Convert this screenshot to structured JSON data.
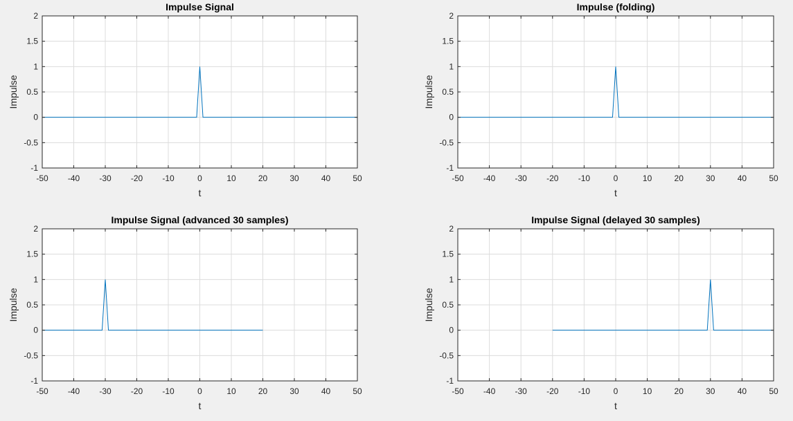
{
  "window": {
    "background": "#f0f0f0"
  },
  "colors": {
    "line": "#0072bd",
    "grid": "#dcdcdc",
    "axis": "#262626",
    "plot_bg": "#ffffff"
  },
  "chart_data": [
    {
      "type": "line",
      "title": "Impulse Signal",
      "xlabel": "t",
      "ylabel": "Impulse",
      "xlim": [
        -50,
        50
      ],
      "ylim": [
        -1,
        2
      ],
      "xticks": [
        -50,
        -40,
        -30,
        -20,
        -10,
        0,
        10,
        20,
        30,
        40,
        50
      ],
      "yticks": [
        -1,
        -0.5,
        0,
        0.5,
        1,
        1.5,
        2
      ],
      "grid": true,
      "series": [
        {
          "x": [
            -50,
            -1,
            0,
            1,
            50
          ],
          "y": [
            0,
            0,
            1,
            0,
            0
          ]
        }
      ]
    },
    {
      "type": "line",
      "title": "Impulse (folding)",
      "xlabel": "t",
      "ylabel": "Impulse",
      "xlim": [
        -50,
        50
      ],
      "ylim": [
        -1,
        2
      ],
      "xticks": [
        -50,
        -40,
        -30,
        -20,
        -10,
        0,
        10,
        20,
        30,
        40,
        50
      ],
      "yticks": [
        -1,
        -0.5,
        0,
        0.5,
        1,
        1.5,
        2
      ],
      "grid": true,
      "series": [
        {
          "x": [
            -50,
            -1,
            0,
            1,
            50
          ],
          "y": [
            0,
            0,
            1,
            0,
            0
          ]
        }
      ]
    },
    {
      "type": "line",
      "title": "Impulse Signal (advanced 30 samples)",
      "xlabel": "t",
      "ylabel": "Impulse",
      "xlim": [
        -50,
        50
      ],
      "ylim": [
        -1,
        2
      ],
      "xticks": [
        -50,
        -40,
        -30,
        -20,
        -10,
        0,
        10,
        20,
        30,
        40,
        50
      ],
      "yticks": [
        -1,
        -0.5,
        0,
        0.5,
        1,
        1.5,
        2
      ],
      "grid": true,
      "series": [
        {
          "x": [
            -50,
            -31,
            -30,
            -29,
            20
          ],
          "y": [
            0,
            0,
            1,
            0,
            0
          ]
        }
      ]
    },
    {
      "type": "line",
      "title": "Impulse Signal (delayed 30 samples)",
      "xlabel": "t",
      "ylabel": "Impulse",
      "xlim": [
        -50,
        50
      ],
      "ylim": [
        -1,
        2
      ],
      "xticks": [
        -50,
        -40,
        -30,
        -20,
        -10,
        0,
        10,
        20,
        30,
        40,
        50
      ],
      "yticks": [
        -1,
        -0.5,
        0,
        0.5,
        1,
        1.5,
        2
      ],
      "grid": true,
      "series": [
        {
          "x": [
            -20,
            29,
            30,
            31,
            50
          ],
          "y": [
            0,
            0,
            1,
            0,
            0
          ]
        }
      ]
    }
  ]
}
